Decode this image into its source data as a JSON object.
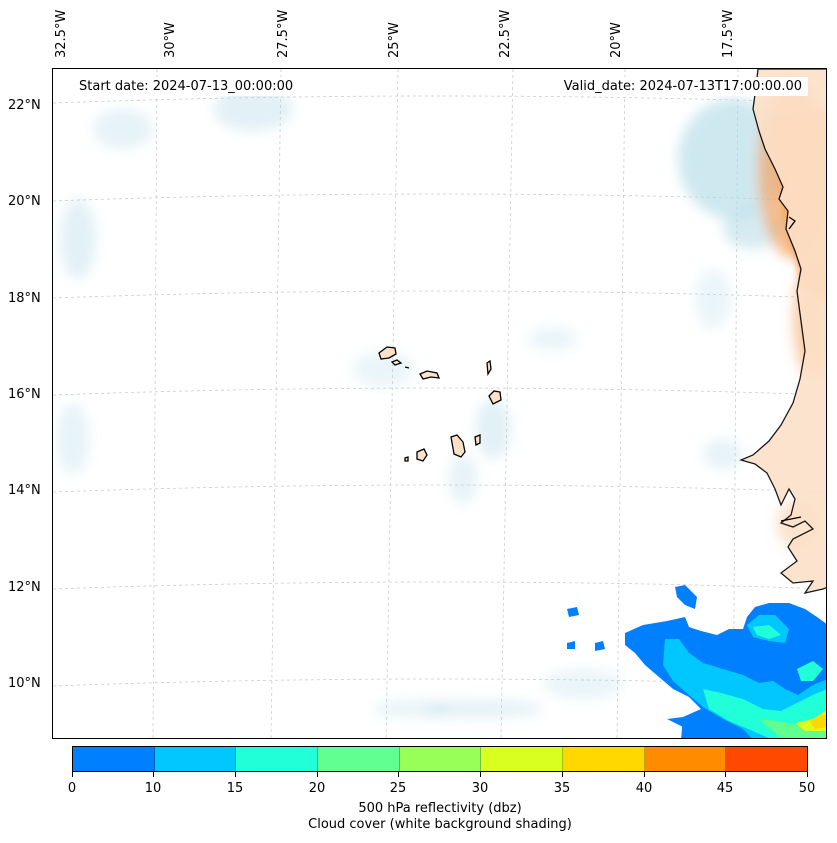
{
  "map": {
    "start_date": "Start date: 2024-07-13_00:00:00",
    "valid_date": "Valid_date: 2024-07-13T17:00:00.00",
    "lon_labels": [
      "32.5°W",
      "30°W",
      "27.5°W",
      "25°W",
      "22.5°W",
      "20°W",
      "17.5°W"
    ],
    "lat_labels": [
      "22°N",
      "20°N",
      "18°N",
      "16°N",
      "14°N",
      "12°N",
      "10°N"
    ],
    "colors": {
      "land_fill": "#fce0c8",
      "cloud_blue": "#add8e6",
      "cloud_orange": "#f4a460",
      "grid": "#cccccc"
    }
  },
  "colorbar": {
    "ticks": [
      "0",
      "10",
      "15",
      "20",
      "25",
      "30",
      "35",
      "40",
      "45",
      "50"
    ],
    "colors": [
      "#0080ff",
      "#00c8ff",
      "#20ffd8",
      "#60ff90",
      "#98ff58",
      "#d8ff20",
      "#ffd800",
      "#ff8c00",
      "#ff4800"
    ],
    "label_line1": "500 hPa reflectivity (dbz)",
    "label_line2": "Cloud cover (white background shading)"
  }
}
